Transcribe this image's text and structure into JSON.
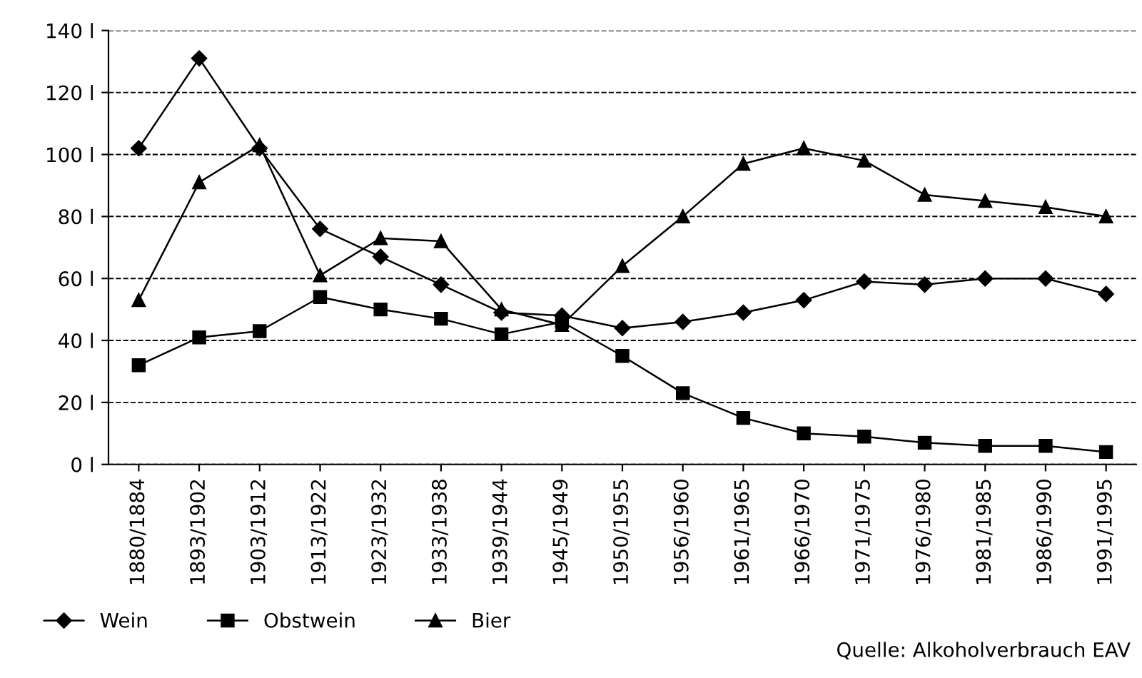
{
  "chart_data": {
    "type": "line",
    "categories": [
      "1880/1884",
      "1893/1902",
      "1903/1912",
      "1913/1922",
      "1923/1932",
      "1933/1938",
      "1939/1944",
      "1945/1949",
      "1950/1955",
      "1956/1960",
      "1961/1965",
      "1966/1970",
      "1971/1975",
      "1976/1980",
      "1981/1985",
      "1986/1990",
      "1991/1995"
    ],
    "series": [
      {
        "name": "Wein",
        "color": "#000000",
        "marker": "diamond",
        "values": [
          102,
          131,
          102,
          76,
          67,
          58,
          49,
          48,
          44,
          46,
          49,
          53,
          59,
          58,
          60,
          60,
          55
        ]
      },
      {
        "name": "Obstwein",
        "color": "#000000",
        "marker": "square",
        "values": [
          32,
          41,
          43,
          54,
          50,
          47,
          42,
          46,
          35,
          23,
          15,
          10,
          9,
          7,
          6,
          6,
          4
        ]
      },
      {
        "name": "Bier",
        "color": "#000000",
        "marker": "triangle",
        "values": [
          53,
          91,
          103,
          61,
          73,
          72,
          50,
          45,
          64,
          80,
          97,
          102,
          98,
          87,
          85,
          83,
          80
        ]
      }
    ],
    "ylim": [
      0,
      140
    ],
    "yticks": [
      {
        "value": 0,
        "label": "0 l"
      },
      {
        "value": 20,
        "label": "20 l"
      },
      {
        "value": 40,
        "label": "40 l"
      },
      {
        "value": 60,
        "label": "60 l"
      },
      {
        "value": 80,
        "label": "80 l"
      },
      {
        "value": 100,
        "label": "100 l"
      },
      {
        "value": 120,
        "label": "120 l"
      },
      {
        "value": 140,
        "label": "140 l"
      }
    ],
    "grid": "y",
    "legend": "bottom",
    "line_style": "solid",
    "annotations": [
      "Quelle: Alkoholverbrauch EAV"
    ]
  }
}
